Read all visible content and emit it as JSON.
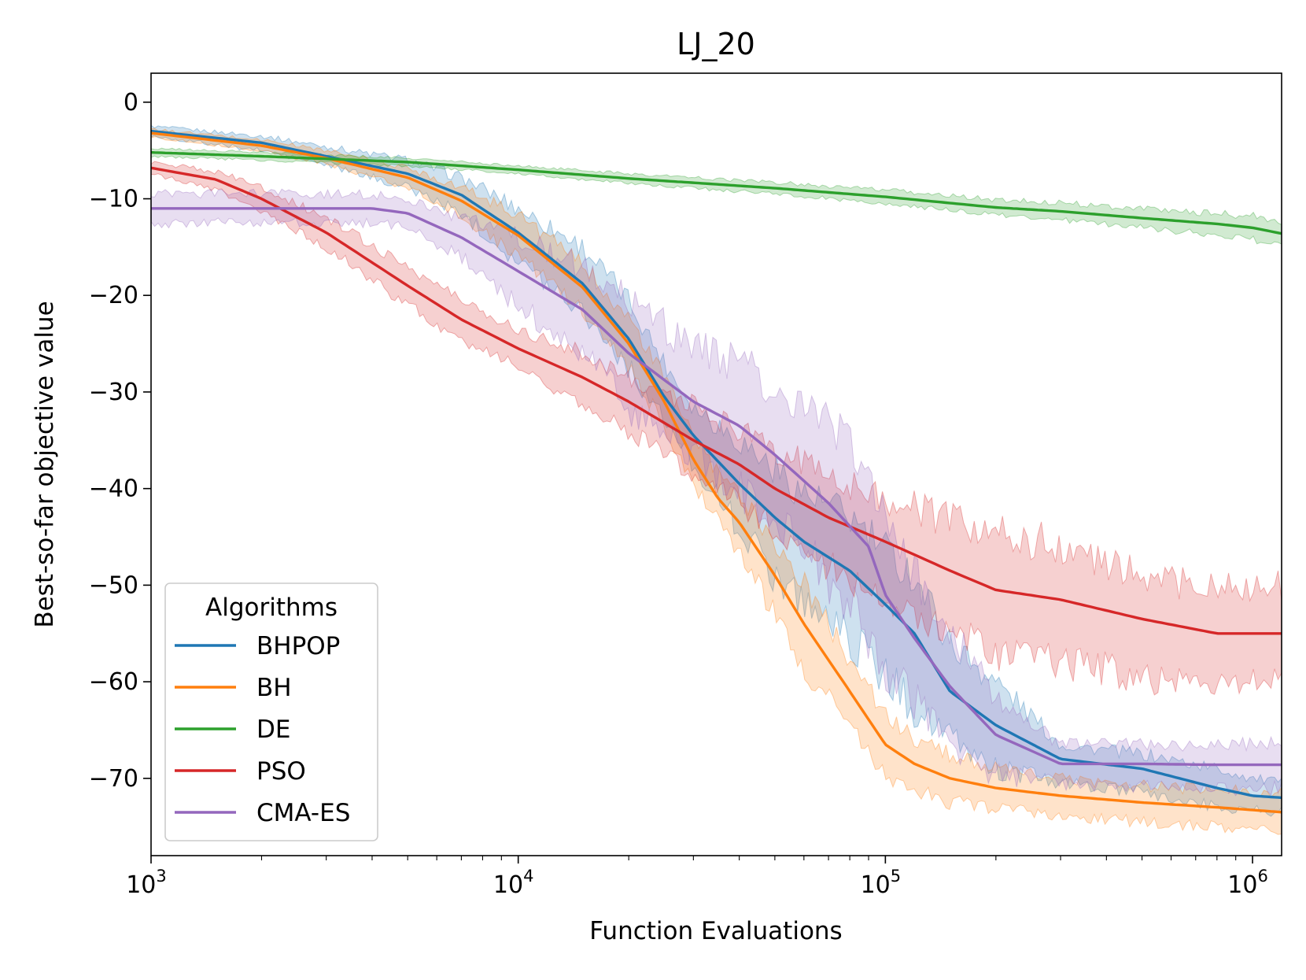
{
  "chart_data": {
    "type": "line",
    "title": "LJ_20",
    "xlabel": "Function Evaluations",
    "ylabel": "Best-so-far objective value",
    "xscale": "log",
    "xlim": [
      1000,
      1200000
    ],
    "ylim": [
      -78,
      3
    ],
    "xticks": [
      {
        "base": "10",
        "exp": "3",
        "value": 1000
      },
      {
        "base": "10",
        "exp": "4",
        "value": 10000
      },
      {
        "base": "10",
        "exp": "5",
        "value": 100000
      },
      {
        "base": "10",
        "exp": "6",
        "value": 1000000
      }
    ],
    "yticks": [
      {
        "label": "0",
        "value": 0
      },
      {
        "label": "−10",
        "value": -10
      },
      {
        "label": "−20",
        "value": -20
      },
      {
        "label": "−30",
        "value": -30
      },
      {
        "label": "−40",
        "value": -40
      },
      {
        "label": "−50",
        "value": -50
      },
      {
        "label": "−60",
        "value": -60
      },
      {
        "label": "−70",
        "value": -70
      }
    ],
    "legend": {
      "title": "Algorithms",
      "position": "lower-left"
    },
    "series": [
      {
        "name": "BHPOP",
        "color": "#1f77b4",
        "x": [
          1000,
          2000,
          3000,
          5000,
          7000,
          10000,
          15000,
          20000,
          25000,
          30000,
          40000,
          50000,
          60000,
          80000,
          100000,
          120000,
          150000,
          200000,
          300000,
          500000,
          800000,
          1000000,
          1200000
        ],
        "y": [
          -3.0,
          -4.2,
          -5.6,
          -7.4,
          -9.6,
          -13.5,
          -18.8,
          -24.5,
          -30.5,
          -34.5,
          -39.5,
          -43.0,
          -45.5,
          -48.5,
          -52.0,
          -55.0,
          -61.0,
          -64.5,
          -68.0,
          -69.0,
          -71.0,
          -71.8,
          -72.0
        ],
        "lower": [
          -3.5,
          -5.0,
          -6.5,
          -8.8,
          -11.5,
          -16.5,
          -21.5,
          -27.5,
          -33.0,
          -37.5,
          -44.0,
          -49.0,
          -51.5,
          -55.5,
          -59.5,
          -62.5,
          -66.0,
          -69.0,
          -70.5,
          -71.5,
          -73.0,
          -73.2,
          -73.5
        ],
        "upper": [
          -2.5,
          -3.5,
          -4.6,
          -6.0,
          -7.8,
          -11.0,
          -15.0,
          -20.5,
          -27.0,
          -31.5,
          -35.0,
          -38.0,
          -40.5,
          -43.0,
          -46.5,
          -49.0,
          -56.0,
          -60.0,
          -66.5,
          -67.5,
          -69.0,
          -70.0,
          -70.5
        ]
      },
      {
        "name": "BH",
        "color": "#ff7f0e",
        "x": [
          1000,
          2000,
          3000,
          5000,
          7000,
          10000,
          15000,
          20000,
          25000,
          30000,
          35000,
          40000,
          50000,
          60000,
          80000,
          100000,
          120000,
          150000,
          200000,
          300000,
          500000,
          800000,
          1200000
        ],
        "y": [
          -3.2,
          -4.5,
          -5.8,
          -7.8,
          -10.2,
          -13.8,
          -19.2,
          -25.0,
          -31.0,
          -37.0,
          -41.0,
          -43.5,
          -49.0,
          -54.0,
          -61.0,
          -66.5,
          -68.5,
          -70.0,
          -71.0,
          -71.8,
          -72.5,
          -73.0,
          -73.5
        ],
        "lower": [
          -3.6,
          -5.0,
          -6.4,
          -8.8,
          -11.8,
          -16.0,
          -21.5,
          -27.5,
          -33.5,
          -39.5,
          -43.0,
          -46.5,
          -53.0,
          -58.5,
          -64.5,
          -69.5,
          -71.0,
          -72.5,
          -73.0,
          -73.8,
          -74.5,
          -75.0,
          -75.5
        ],
        "upper": [
          -2.8,
          -3.9,
          -5.0,
          -6.8,
          -8.8,
          -11.6,
          -16.8,
          -22.5,
          -28.5,
          -34.5,
          -38.5,
          -40.5,
          -45.5,
          -50.0,
          -57.5,
          -63.5,
          -66.0,
          -67.5,
          -69.0,
          -70.0,
          -70.8,
          -71.2,
          -71.5
        ]
      },
      {
        "name": "DE",
        "color": "#2ca02c",
        "x": [
          1000,
          2000,
          5000,
          10000,
          20000,
          50000,
          100000,
          200000,
          300000,
          500000,
          800000,
          1000000,
          1200000
        ],
        "y": [
          -5.2,
          -5.6,
          -6.2,
          -7.0,
          -7.9,
          -8.9,
          -9.8,
          -10.9,
          -11.3,
          -12.0,
          -12.6,
          -13.0,
          -13.6
        ],
        "lower": [
          -5.6,
          -6.0,
          -6.6,
          -7.4,
          -8.4,
          -9.5,
          -10.5,
          -11.7,
          -12.2,
          -13.0,
          -13.7,
          -14.2,
          -14.8
        ],
        "upper": [
          -4.8,
          -5.2,
          -5.8,
          -6.6,
          -7.4,
          -8.3,
          -9.1,
          -10.1,
          -10.4,
          -11.0,
          -11.5,
          -11.8,
          -12.4
        ]
      },
      {
        "name": "PSO",
        "color": "#d62728",
        "x": [
          1000,
          1500,
          2000,
          3000,
          5000,
          7000,
          10000,
          15000,
          20000,
          30000,
          40000,
          50000,
          70000,
          100000,
          150000,
          200000,
          300000,
          500000,
          800000,
          1200000
        ],
        "y": [
          -6.8,
          -8.0,
          -10.0,
          -13.5,
          -19.0,
          -22.5,
          -25.5,
          -28.5,
          -31.0,
          -35.0,
          -37.5,
          -40.0,
          -43.0,
          -45.5,
          -48.5,
          -50.5,
          -51.5,
          -53.5,
          -55.0,
          -55.0
        ],
        "lower": [
          -7.4,
          -9.0,
          -11.2,
          -15.0,
          -21.0,
          -24.5,
          -27.5,
          -31.0,
          -34.0,
          -38.5,
          -41.5,
          -44.0,
          -48.0,
          -51.5,
          -55.0,
          -57.0,
          -58.0,
          -59.5,
          -60.0,
          -60.0
        ],
        "upper": [
          -6.2,
          -7.2,
          -8.8,
          -12.0,
          -17.0,
          -20.5,
          -23.5,
          -26.0,
          -28.5,
          -31.5,
          -34.0,
          -36.0,
          -38.5,
          -41.0,
          -43.5,
          -44.5,
          -46.0,
          -49.0,
          -50.5,
          -50.0
        ]
      },
      {
        "name": "CMA-ES",
        "color": "#9467bd",
        "x": [
          1000,
          2000,
          4000,
          5000,
          7000,
          10000,
          15000,
          20000,
          30000,
          40000,
          50000,
          70000,
          90000,
          100000,
          120000,
          150000,
          200000,
          300000,
          500000,
          800000,
          1200000
        ],
        "y": [
          -11.0,
          -11.0,
          -11.0,
          -11.5,
          -14.0,
          -17.5,
          -21.5,
          -26.0,
          -31.0,
          -33.5,
          -36.5,
          -41.5,
          -46.0,
          -51.0,
          -55.5,
          -60.5,
          -65.5,
          -68.5,
          -68.5,
          -68.6,
          -68.6
        ],
        "lower": [
          -12.5,
          -12.5,
          -12.5,
          -13.0,
          -16.0,
          -21.0,
          -26.0,
          -31.5,
          -36.5,
          -40.0,
          -43.5,
          -49.5,
          -55.0,
          -58.5,
          -62.0,
          -66.5,
          -69.5,
          -70.5,
          -70.8,
          -71.0,
          -71.0
        ],
        "upper": [
          -9.5,
          -9.5,
          -9.5,
          -10.0,
          -12.0,
          -14.0,
          -17.0,
          -20.5,
          -25.5,
          -27.0,
          -29.5,
          -33.5,
          -38.0,
          -43.5,
          -49.0,
          -54.5,
          -61.5,
          -66.5,
          -66.5,
          -66.5,
          -66.5
        ]
      }
    ]
  }
}
